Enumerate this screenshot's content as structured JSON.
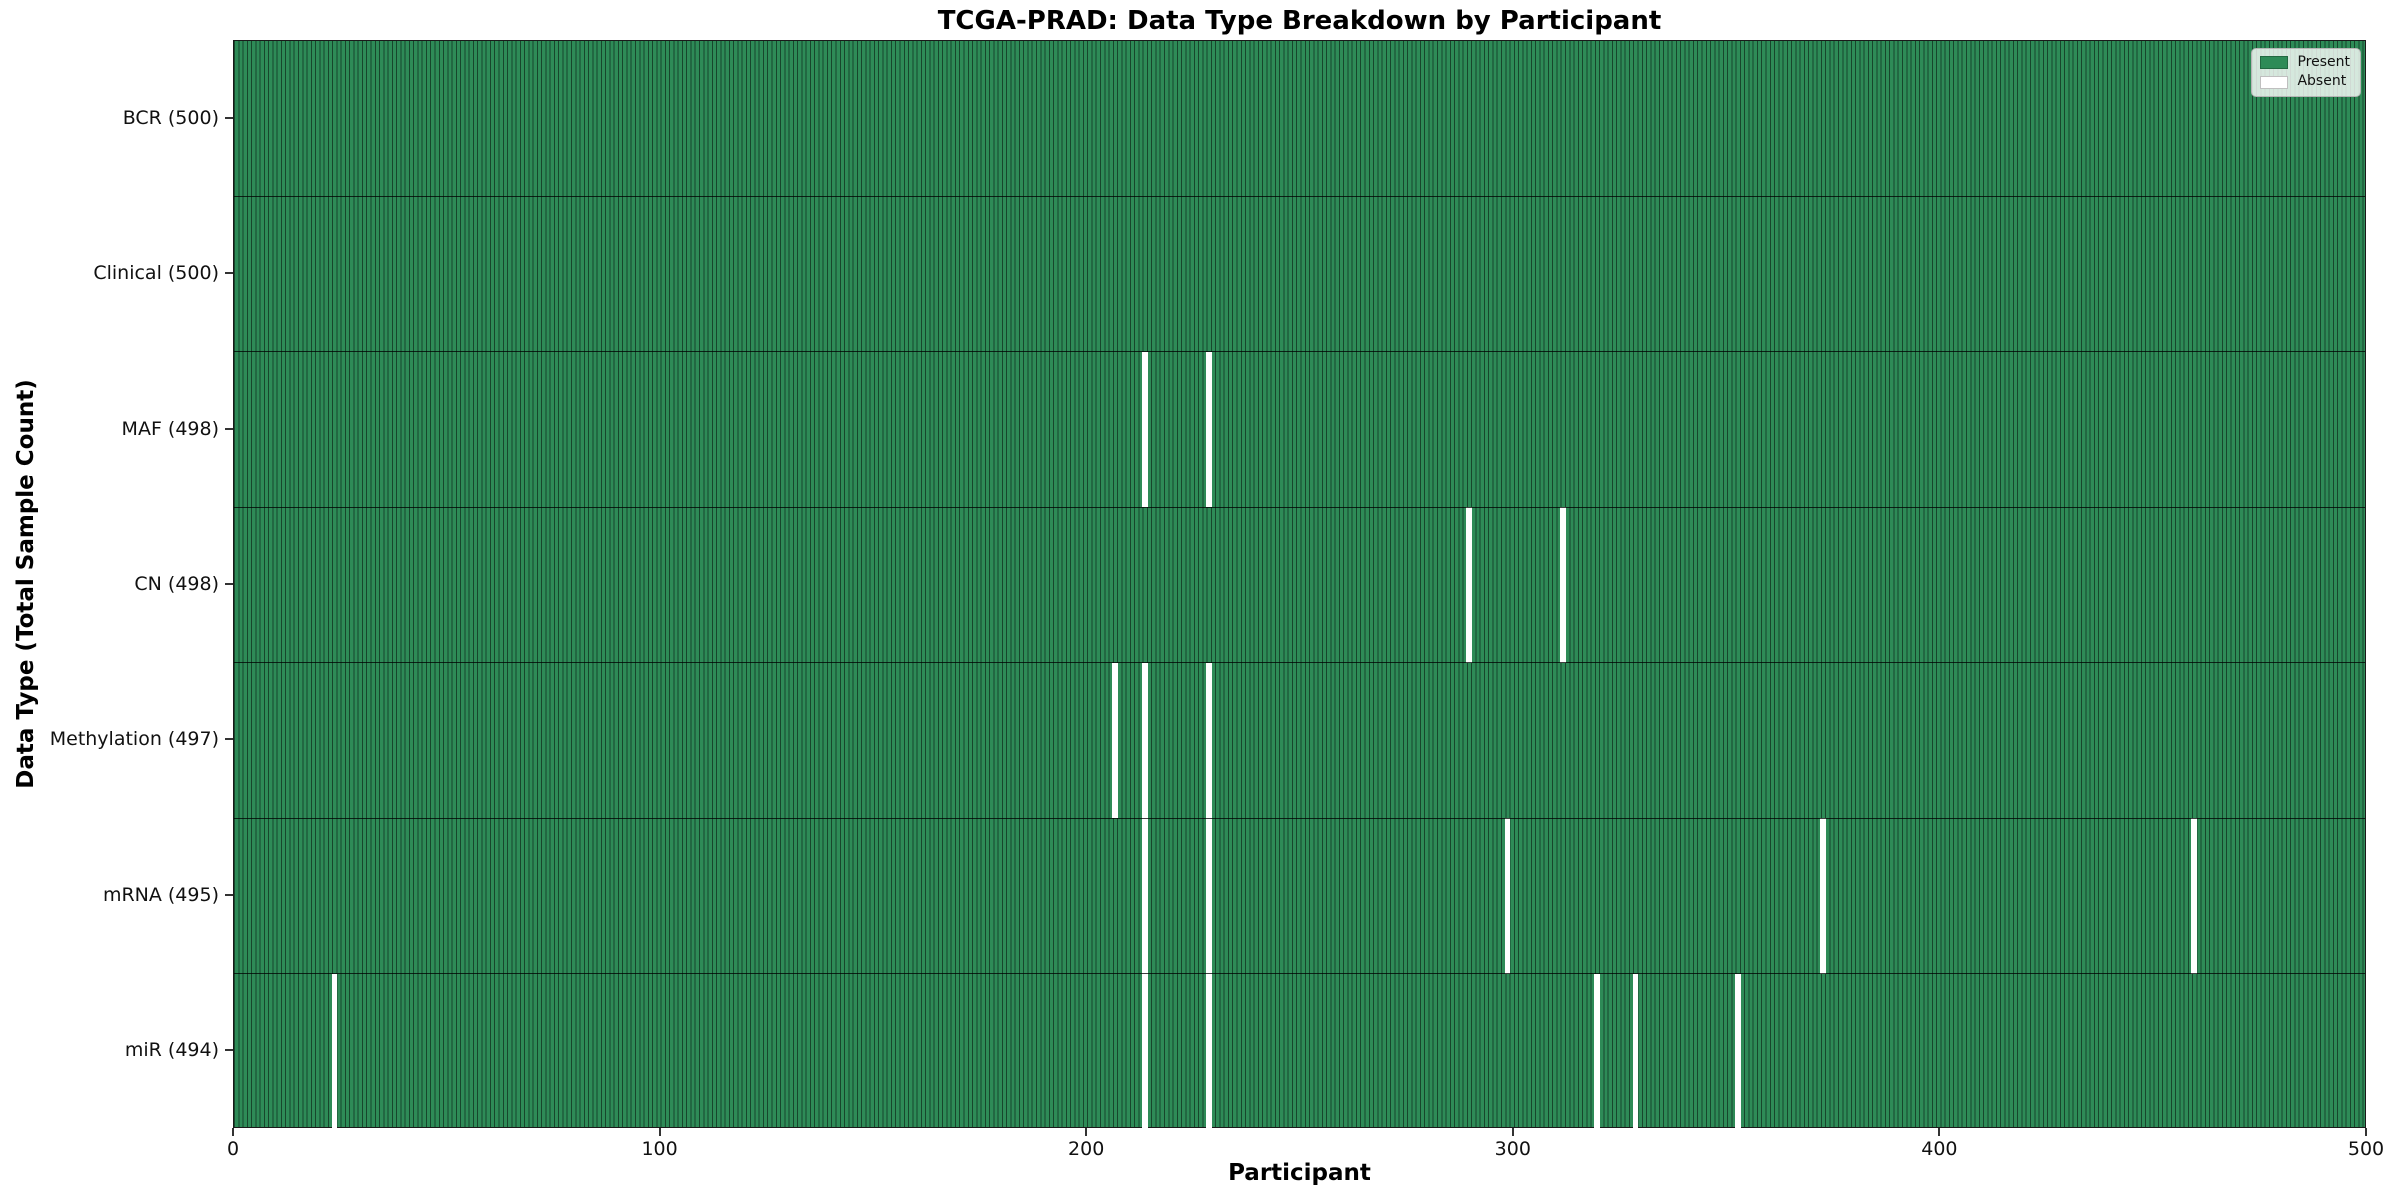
{
  "chart_data": {
    "type": "heatmap",
    "title": "TCGA-PRAD: Data Type Breakdown by Participant",
    "xlabel": "Participant",
    "ylabel": "Data Type (Total Sample Count)",
    "x_range": [
      0,
      500
    ],
    "x_ticks": [
      0,
      100,
      200,
      300,
      400,
      500
    ],
    "n_participants": 500,
    "grid": false,
    "legend": {
      "position": "upper right",
      "entries": [
        {
          "label": "Present",
          "color": "#2e8b57"
        },
        {
          "label": "Absent",
          "color": "#ffffff"
        }
      ]
    },
    "rows": [
      {
        "label": "BCR (500)",
        "data_type": "BCR",
        "total": 500,
        "absent_participants": []
      },
      {
        "label": "Clinical (500)",
        "data_type": "Clinical",
        "total": 500,
        "absent_participants": []
      },
      {
        "label": "MAF (498)",
        "data_type": "MAF",
        "total": 498,
        "absent_participants": [
          213,
          228
        ]
      },
      {
        "label": "CN (498)",
        "data_type": "CN",
        "total": 498,
        "absent_participants": [
          289,
          311
        ]
      },
      {
        "label": "Methylation (497)",
        "data_type": "Methylation",
        "total": 497,
        "absent_participants": [
          206,
          213,
          228
        ]
      },
      {
        "label": "mRNA (495)",
        "data_type": "mRNA",
        "total": 495,
        "absent_participants": [
          213,
          228,
          298,
          372,
          459
        ]
      },
      {
        "label": "miR (494)",
        "data_type": "miR",
        "total": 494,
        "absent_participants": [
          23,
          213,
          228,
          319,
          328,
          352
        ]
      }
    ],
    "colors": {
      "present": "#2e8b57",
      "absent": "#ffffff",
      "cell_edge": "#17462c",
      "row_divider": "#1a1a1a",
      "axis": "#1a1a1a"
    }
  }
}
